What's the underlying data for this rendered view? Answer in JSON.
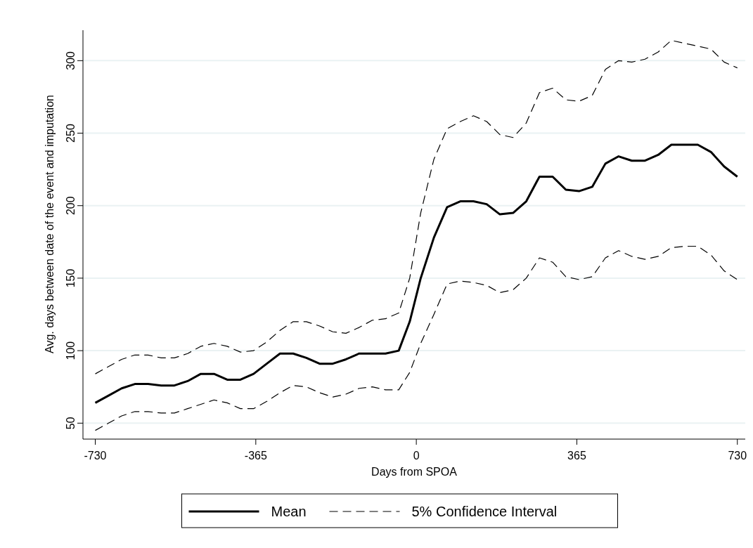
{
  "chart_data": {
    "type": "line",
    "xlabel": "Days from SPOA",
    "ylabel": "Avg. days between date of the event and imputation",
    "x": [
      -730,
      -700,
      -670,
      -640,
      -610,
      -580,
      -550,
      -520,
      -490,
      -460,
      -430,
      -400,
      -370,
      -340,
      -310,
      -280,
      -250,
      -220,
      -190,
      -160,
      -130,
      -100,
      -70,
      -40,
      -15,
      10,
      40,
      70,
      100,
      130,
      160,
      190,
      220,
      250,
      280,
      310,
      340,
      370,
      400,
      430,
      460,
      490,
      520,
      550,
      580,
      610,
      640,
      670,
      700,
      730
    ],
    "series": [
      {
        "name": "Mean",
        "color": "#000000",
        "line_style": "solid",
        "values": [
          64,
          69,
          74,
          77,
          77,
          76,
          76,
          79,
          84,
          84,
          80,
          80,
          84,
          91,
          98,
          98,
          95,
          91,
          91,
          94,
          98,
          98,
          98,
          100,
          120,
          150,
          178,
          199,
          203,
          203,
          201,
          194,
          195,
          203,
          220,
          220,
          211,
          210,
          213,
          229,
          234,
          231,
          231,
          235,
          242,
          242,
          242,
          237,
          227,
          220
        ]
      },
      {
        "name": "5% Confidence Interval",
        "color": "#000000",
        "line_style": "dashed",
        "values": [
          84,
          89,
          94,
          97,
          97,
          95,
          95,
          98,
          103,
          105,
          103,
          99,
          100,
          106,
          114,
          120,
          120,
          117,
          113,
          112,
          116,
          121,
          122,
          126,
          150,
          195,
          232,
          253,
          258,
          262,
          258,
          249,
          247,
          257,
          278,
          281,
          273,
          272,
          276,
          294,
          300,
          299,
          301,
          306,
          314,
          312,
          310,
          308,
          299,
          295
        ]
      },
      {
        "color": "#000000",
        "line_style": "dashed",
        "values": [
          45,
          50,
          55,
          58,
          58,
          57,
          57,
          60,
          63,
          66,
          64,
          60,
          60,
          65,
          71,
          76,
          75,
          71,
          68,
          70,
          74,
          75,
          73,
          73,
          85,
          105,
          125,
          146,
          148,
          147,
          145,
          140,
          142,
          150,
          164,
          161,
          151,
          149,
          151,
          164,
          169,
          165,
          163,
          165,
          171,
          172,
          172,
          166,
          155,
          149
        ]
      }
    ],
    "xlim": [
      -758,
      748
    ],
    "ylim": [
      39,
      321
    ],
    "xticks": [
      -730,
      -365,
      0,
      365,
      730
    ],
    "yticks": [
      50,
      100,
      150,
      200,
      250,
      300
    ],
    "grid": "y",
    "legend": "bottom",
    "marker": "none"
  }
}
